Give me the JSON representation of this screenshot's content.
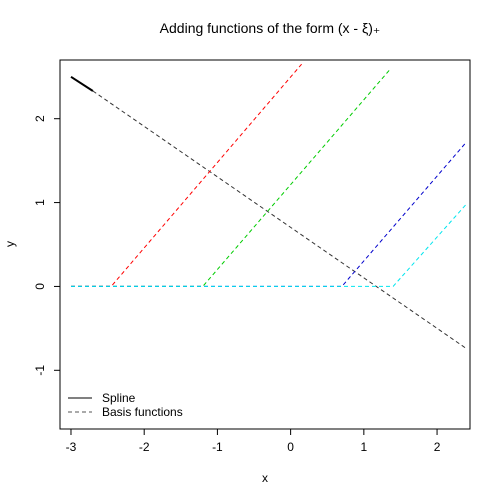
{
  "chart_data": {
    "type": "line",
    "title": "Adding functions of the form (x - ξ)₊",
    "xlabel": "x",
    "ylabel": "y",
    "xlim": [
      -3.15,
      2.45
    ],
    "ylim": [
      -1.7,
      2.7
    ],
    "xticks": [
      -3,
      -2,
      -1,
      0,
      1,
      2
    ],
    "yticks": [
      -1,
      0,
      1,
      2
    ],
    "grid": false,
    "legend": {
      "position": "bottom-left",
      "entries": [
        {
          "label": "Spline",
          "style": "solid",
          "color": "#000000"
        },
        {
          "label": "Basis functions",
          "style": "dashed",
          "color": "#555555"
        }
      ]
    },
    "series": [
      {
        "style": "solid",
        "color": "#000000",
        "x": [
          -3.0,
          -2.7
        ],
        "y": [
          2.5,
          2.33
        ]
      },
      {
        "style": "dashed",
        "color": "#333333",
        "x": [
          -2.7,
          2.4
        ],
        "y": [
          2.33,
          -0.74
        ]
      },
      {
        "style": "dashed",
        "color": "#ff0000",
        "x": [
          -3.0,
          -2.45,
          0.15
        ],
        "y": [
          0.0,
          0.0,
          2.65
        ]
      },
      {
        "style": "dashed",
        "color": "#00cc00",
        "x": [
          -3.0,
          -1.2,
          1.37
        ],
        "y": [
          0.0,
          0.0,
          2.6
        ]
      },
      {
        "style": "dashed",
        "color": "#0000cc",
        "x": [
          -3.0,
          0.7,
          2.4
        ],
        "y": [
          0.0,
          0.0,
          1.72
        ]
      },
      {
        "style": "dashed",
        "color": "#00e5ee",
        "x": [
          -3.0,
          1.4,
          2.4
        ],
        "y": [
          0.0,
          0.0,
          0.98
        ]
      }
    ]
  }
}
